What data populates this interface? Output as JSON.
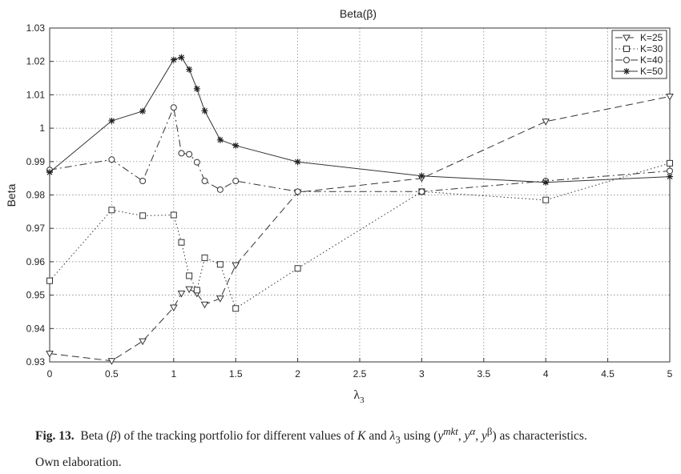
{
  "chart_data": {
    "type": "line",
    "title": "Beta(β)",
    "xlabel": "λ3",
    "ylabel": "Beta",
    "xlim": [
      0,
      5
    ],
    "ylim": [
      0.93,
      1.03
    ],
    "x_ticks": [
      "0",
      "0.5",
      "1",
      "1.5",
      "2",
      "2.5",
      "3",
      "3.5",
      "4",
      "4.5",
      "5"
    ],
    "y_ticks": [
      "0.93",
      "0.94",
      "0.95",
      "0.96",
      "0.97",
      "0.98",
      "0.99",
      "1",
      "1.01",
      "1.02",
      "1.03"
    ],
    "grid": true,
    "legend_position": "top-right",
    "series": [
      {
        "name": "K=25",
        "marker": "triangle-down",
        "line_style": "dashed",
        "x": [
          0,
          0.5,
          0.75,
          1,
          1.0625,
          1.125,
          1.1875,
          1.25,
          1.375,
          1.5,
          2,
          3,
          4,
          5
        ],
        "y": [
          0.9325,
          0.9303,
          0.9362,
          0.9463,
          0.9505,
          0.9518,
          0.9505,
          0.9472,
          0.949,
          0.959,
          0.9808,
          0.985,
          1.002,
          1.0095
        ]
      },
      {
        "name": "K=30",
        "marker": "square",
        "line_style": "dotted",
        "x": [
          0,
          0.5,
          0.75,
          1,
          1.0625,
          1.125,
          1.1875,
          1.25,
          1.375,
          1.5,
          2,
          3,
          4,
          5
        ],
        "y": [
          0.9543,
          0.9755,
          0.9738,
          0.974,
          0.9658,
          0.9558,
          0.9515,
          0.9612,
          0.9592,
          0.946,
          0.958,
          0.981,
          0.9785,
          0.9895
        ]
      },
      {
        "name": "K=40",
        "marker": "circle",
        "line_style": "dashdot",
        "x": [
          0,
          0.5,
          0.75,
          1,
          1.0625,
          1.125,
          1.1875,
          1.25,
          1.375,
          1.5,
          2,
          3,
          4,
          5
        ],
        "y": [
          0.9875,
          0.9906,
          0.9842,
          1.0062,
          0.9925,
          0.9922,
          0.9898,
          0.9842,
          0.9816,
          0.9842,
          0.981,
          0.981,
          0.9842,
          0.9872
        ]
      },
      {
        "name": "K=50",
        "marker": "star",
        "line_style": "solid",
        "x": [
          0,
          0.5,
          0.75,
          1,
          1.0625,
          1.125,
          1.1875,
          1.25,
          1.375,
          1.5,
          2,
          3,
          4,
          5
        ],
        "y": [
          0.9868,
          1.0022,
          1.0051,
          1.0205,
          1.0212,
          1.0176,
          1.0118,
          1.0052,
          0.9965,
          0.9948,
          0.9899,
          0.9857,
          0.9838,
          0.9855
        ]
      }
    ]
  },
  "caption": {
    "label": "Fig. 13.",
    "text_before": "Beta (",
    "beta": "β",
    "text_mid": ") of the tracking portfolio for different values of ",
    "k": "K",
    "text_and": " and ",
    "lambda": "λ",
    "lambda_sub": "3",
    "text_using": " using (",
    "y1": "y",
    "y1_sup": "mkt",
    "sep1": ", ",
    "y2": "y",
    "y2_sup": "α",
    "sep2": ", ",
    "y3": "y",
    "y3_sup": "β",
    "text_after": ") as characteristics.",
    "line2": "Own elaboration."
  }
}
